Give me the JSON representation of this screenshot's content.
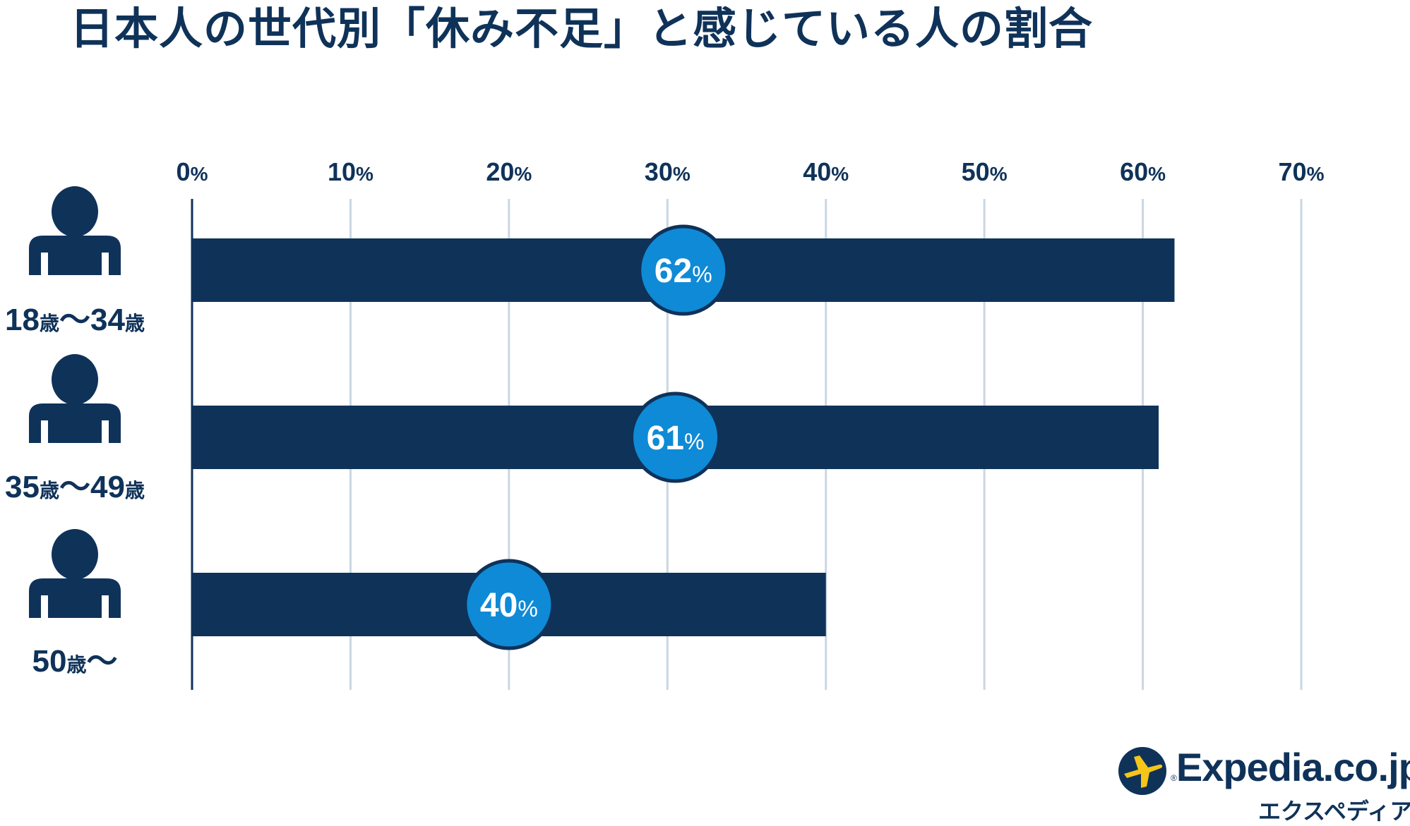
{
  "title": "日本人の世代別「休み不足」と感じている人の割合",
  "colors": {
    "bar": "#0f3259",
    "bubble": "#0f8ad6",
    "grid": "#c9d7e3",
    "text": "#0f3259",
    "logo_yellow": "#f5c518"
  },
  "chart_data": {
    "type": "bar",
    "orientation": "horizontal",
    "categories": [
      {
        "num1": "18",
        "unit1": "歳",
        "tilde": "〜",
        "num2": "34",
        "unit2": "歳"
      },
      {
        "num1": "35",
        "unit1": "歳",
        "tilde": "〜",
        "num2": "49",
        "unit2": "歳"
      },
      {
        "num1": "50",
        "unit1": "歳",
        "tilde": "〜",
        "num2": "",
        "unit2": ""
      }
    ],
    "values": [
      62,
      61,
      40
    ],
    "value_labels": [
      "62",
      "61",
      "40"
    ],
    "value_suffix": "%",
    "xlim": [
      0,
      70
    ],
    "xticks": [
      0,
      10,
      20,
      30,
      40,
      50,
      60,
      70
    ],
    "xtick_labels": [
      "0",
      "10",
      "20",
      "30",
      "40",
      "50",
      "60",
      "70"
    ],
    "xtick_suffix": "%",
    "grid": true,
    "category_icon": "person-icon"
  },
  "logo": {
    "name": "Expedia.co.jp",
    "tm": "™",
    "reg": "®",
    "subtitle": "エクスペディア",
    "icon": "plane-globe-icon"
  }
}
